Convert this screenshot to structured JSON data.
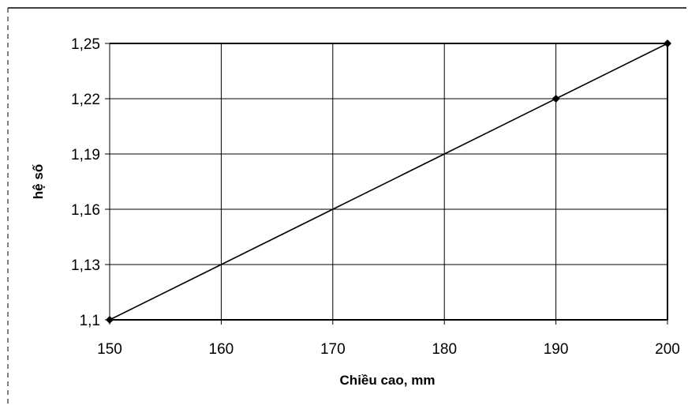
{
  "chart_data": {
    "type": "line",
    "xlabel": "Chiều cao, mm",
    "ylabel": "hệ số",
    "xlim": [
      150,
      200
    ],
    "ylim": [
      1.1,
      1.25
    ],
    "x_ticks": [
      "150",
      "160",
      "170",
      "180",
      "190",
      "200"
    ],
    "y_ticks": [
      "1,1",
      "1,13",
      "1,16",
      "1,19",
      "1,22",
      "1,25"
    ],
    "grid": true,
    "series": [
      {
        "x": [
          150,
          160,
          170,
          180,
          190,
          200
        ],
        "y": [
          1.1,
          1.13,
          1.16,
          1.19,
          1.22,
          1.25
        ],
        "marker_points": [
          [
            150,
            1.1
          ],
          [
            190,
            1.22
          ],
          [
            200,
            1.25
          ]
        ],
        "color": "#000000"
      }
    ]
  }
}
